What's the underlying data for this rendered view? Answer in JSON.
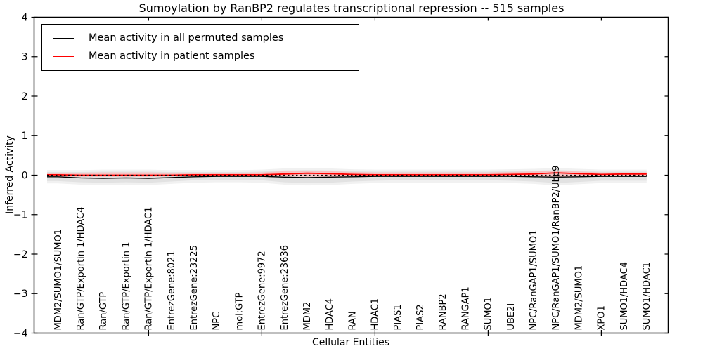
{
  "figure": {
    "title": "Sumoylation by RanBP2 regulates transcriptional repression -- 515 samples"
  },
  "legend": {
    "entries": [
      {
        "label": "Mean activity in all permuted samples",
        "color": "#000000"
      },
      {
        "label": "Mean activity in patient samples",
        "color": "#ff0000"
      }
    ],
    "position": "upper left"
  },
  "chart_data": {
    "type": "line",
    "title": "Sumoylation by RanBP2 regulates transcriptional repression -- 515 samples",
    "xlabel": "Cellular Entities",
    "ylabel": "Inferred Activity",
    "ylim": [
      -4,
      4
    ],
    "grid": false,
    "yticks": [
      {
        "v": 4,
        "label": "4"
      },
      {
        "v": 3,
        "label": "3"
      },
      {
        "v": 2,
        "label": "2"
      },
      {
        "v": 1,
        "label": "1"
      },
      {
        "v": 0,
        "label": "0"
      },
      {
        "v": -1,
        "label": "−1"
      },
      {
        "v": -2,
        "label": "−2"
      },
      {
        "v": -3,
        "label": "−3"
      },
      {
        "v": -4,
        "label": "−4"
      }
    ],
    "xtick_indices": [
      4,
      9,
      14,
      19,
      24
    ],
    "categories": [
      "MDM2/SUMO1/SUMO1",
      "Ran/GTP/Exportin 1/HDAC4",
      "Ran/GTP",
      "Ran/GTP/Exportin 1",
      "Ran/GTP/Exportin 1/HDAC1",
      "EntrezGene:8021",
      "EntrezGene:23225",
      "NPC",
      "mol:GTP",
      "EntrezGene:9972",
      "EntrezGene:23636",
      "MDM2",
      "HDAC4",
      "RAN",
      "HDAC1",
      "PIAS1",
      "PIAS2",
      "RANBP2",
      "RANGAP1",
      "SUMO1",
      "UBE2I",
      "NPC/RanGAP1/SUMO1",
      "NPC/RanGAP1/SUMO1/RanBP2/Ubc9",
      "MDM2/SUMO1",
      "XPO1",
      "SUMO1/HDAC4",
      "SUMO1/HDAC1"
    ],
    "series": [
      {
        "name": "Mean activity in all permuted samples",
        "color": "#000000",
        "values": [
          -0.04,
          -0.07,
          -0.08,
          -0.07,
          -0.08,
          -0.06,
          -0.04,
          -0.03,
          -0.03,
          -0.03,
          -0.05,
          -0.06,
          -0.05,
          -0.04,
          -0.03,
          -0.03,
          -0.03,
          -0.03,
          -0.03,
          -0.03,
          -0.03,
          -0.04,
          -0.05,
          -0.04,
          -0.03,
          -0.03,
          -0.03
        ]
      },
      {
        "name": "Mean activity in patient samples",
        "color": "#ff0000",
        "values": [
          0.01,
          0.0,
          0.0,
          0.0,
          0.0,
          0.0,
          0.01,
          0.01,
          0.01,
          0.01,
          0.03,
          0.05,
          0.04,
          0.02,
          0.01,
          0.01,
          0.01,
          0.01,
          0.01,
          0.01,
          0.02,
          0.03,
          0.06,
          0.04,
          0.02,
          0.03,
          0.03
        ]
      }
    ],
    "bands": [
      {
        "name": "permuted-samples-spread",
        "color": "#e2e2e2",
        "upper": [
          0.08,
          0.08,
          0.09,
          0.09,
          0.09,
          0.08,
          0.08,
          0.08,
          0.08,
          0.09,
          0.12,
          0.13,
          0.12,
          0.1,
          0.09,
          0.09,
          0.09,
          0.09,
          0.09,
          0.09,
          0.1,
          0.11,
          0.13,
          0.11,
          0.09,
          0.09,
          0.09
        ],
        "lower": [
          -0.15,
          -0.18,
          -0.19,
          -0.18,
          -0.19,
          -0.16,
          -0.13,
          -0.12,
          -0.12,
          -0.13,
          -0.18,
          -0.2,
          -0.19,
          -0.16,
          -0.14,
          -0.13,
          -0.13,
          -0.13,
          -0.13,
          -0.13,
          -0.14,
          -0.16,
          -0.2,
          -0.17,
          -0.14,
          -0.14,
          -0.14
        ]
      },
      {
        "name": "patient-samples-spread",
        "color": "#f6c2c2",
        "upper": [
          0.06,
          0.06,
          0.07,
          0.07,
          0.07,
          0.06,
          0.06,
          0.06,
          0.06,
          0.07,
          0.1,
          0.11,
          0.1,
          0.08,
          0.07,
          0.07,
          0.07,
          0.07,
          0.07,
          0.07,
          0.08,
          0.09,
          0.11,
          0.09,
          0.07,
          0.07,
          0.07
        ],
        "lower": [
          -0.03,
          -0.04,
          -0.04,
          -0.04,
          -0.04,
          -0.03,
          -0.02,
          -0.02,
          -0.02,
          -0.02,
          -0.03,
          -0.04,
          -0.04,
          -0.03,
          -0.02,
          -0.02,
          -0.02,
          -0.02,
          -0.02,
          -0.02,
          -0.02,
          -0.03,
          -0.04,
          -0.03,
          -0.02,
          -0.02,
          -0.02
        ]
      }
    ],
    "zero_line": {
      "y": 0,
      "style": "dotted",
      "color": "#000000"
    }
  }
}
